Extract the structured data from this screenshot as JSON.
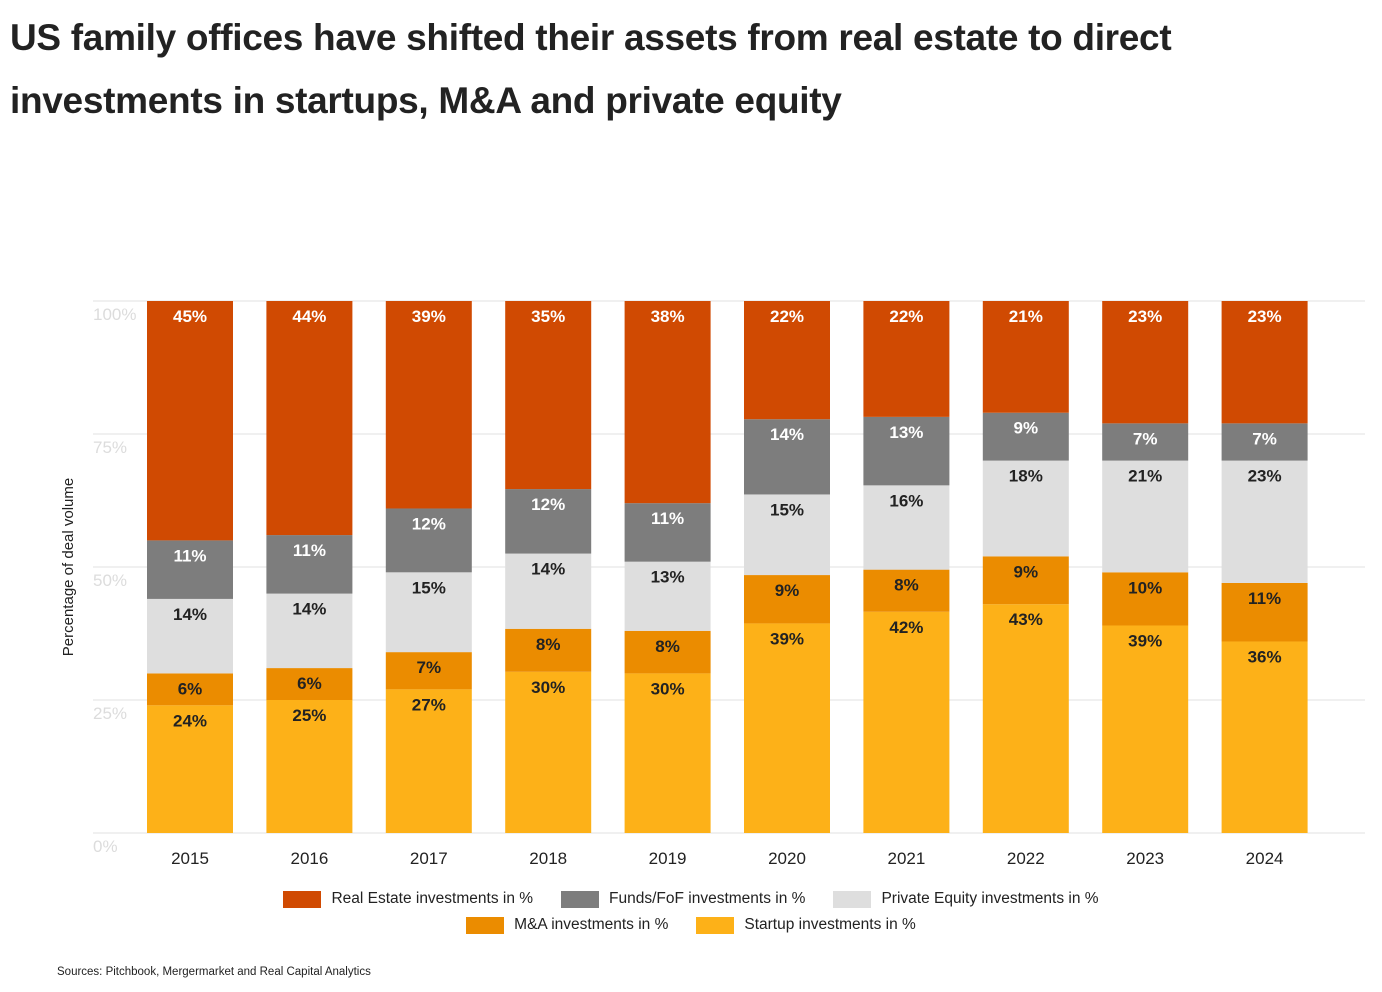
{
  "title": "US family offices have shifted their assets from real estate to direct investments in startups, M&A and private equity",
  "source": "Sources: Pitchbook, Mergermarket and Real Capital Analytics",
  "chart_data": {
    "type": "bar",
    "stacked": true,
    "title": "US family offices have shifted their assets from real estate to direct investments in startups, M&A and private equity",
    "xlabel": "",
    "ylabel": "Percentage of deal volume",
    "ylim": [
      0,
      100
    ],
    "yticks": [
      "0%",
      "25%",
      "50%",
      "75%",
      "100%"
    ],
    "grid": true,
    "legend_position": "bottom",
    "categories": [
      "2015",
      "2016",
      "2017",
      "2018",
      "2019",
      "2020",
      "2021",
      "2022",
      "2023",
      "2024"
    ],
    "series": [
      {
        "name": "Startup investments in %",
        "color": "#fdb118",
        "label_color": "#222222",
        "values": [
          24,
          25,
          27,
          30,
          30,
          39,
          42,
          43,
          39,
          36
        ]
      },
      {
        "name": "M&A investments in %",
        "color": "#eb8c00",
        "label_color": "#222222",
        "values": [
          6,
          6,
          7,
          8,
          8,
          9,
          8,
          9,
          10,
          11
        ]
      },
      {
        "name": "Private Equity investments in %",
        "color": "#dedede",
        "label_color": "#222222",
        "values": [
          14,
          14,
          15,
          14,
          13,
          15,
          16,
          18,
          21,
          23
        ]
      },
      {
        "name": "Funds/FoF investments in %",
        "color": "#7d7d7d",
        "label_color": "#ffffff",
        "values": [
          11,
          11,
          12,
          12,
          11,
          14,
          13,
          9,
          7,
          7
        ]
      },
      {
        "name": "Real Estate investments in %",
        "color": "#d04a02",
        "label_color": "#ffffff",
        "values": [
          45,
          44,
          39,
          35,
          38,
          22,
          22,
          21,
          23,
          23
        ]
      }
    ],
    "legend_order": [
      4,
      3,
      2,
      1,
      0
    ]
  }
}
